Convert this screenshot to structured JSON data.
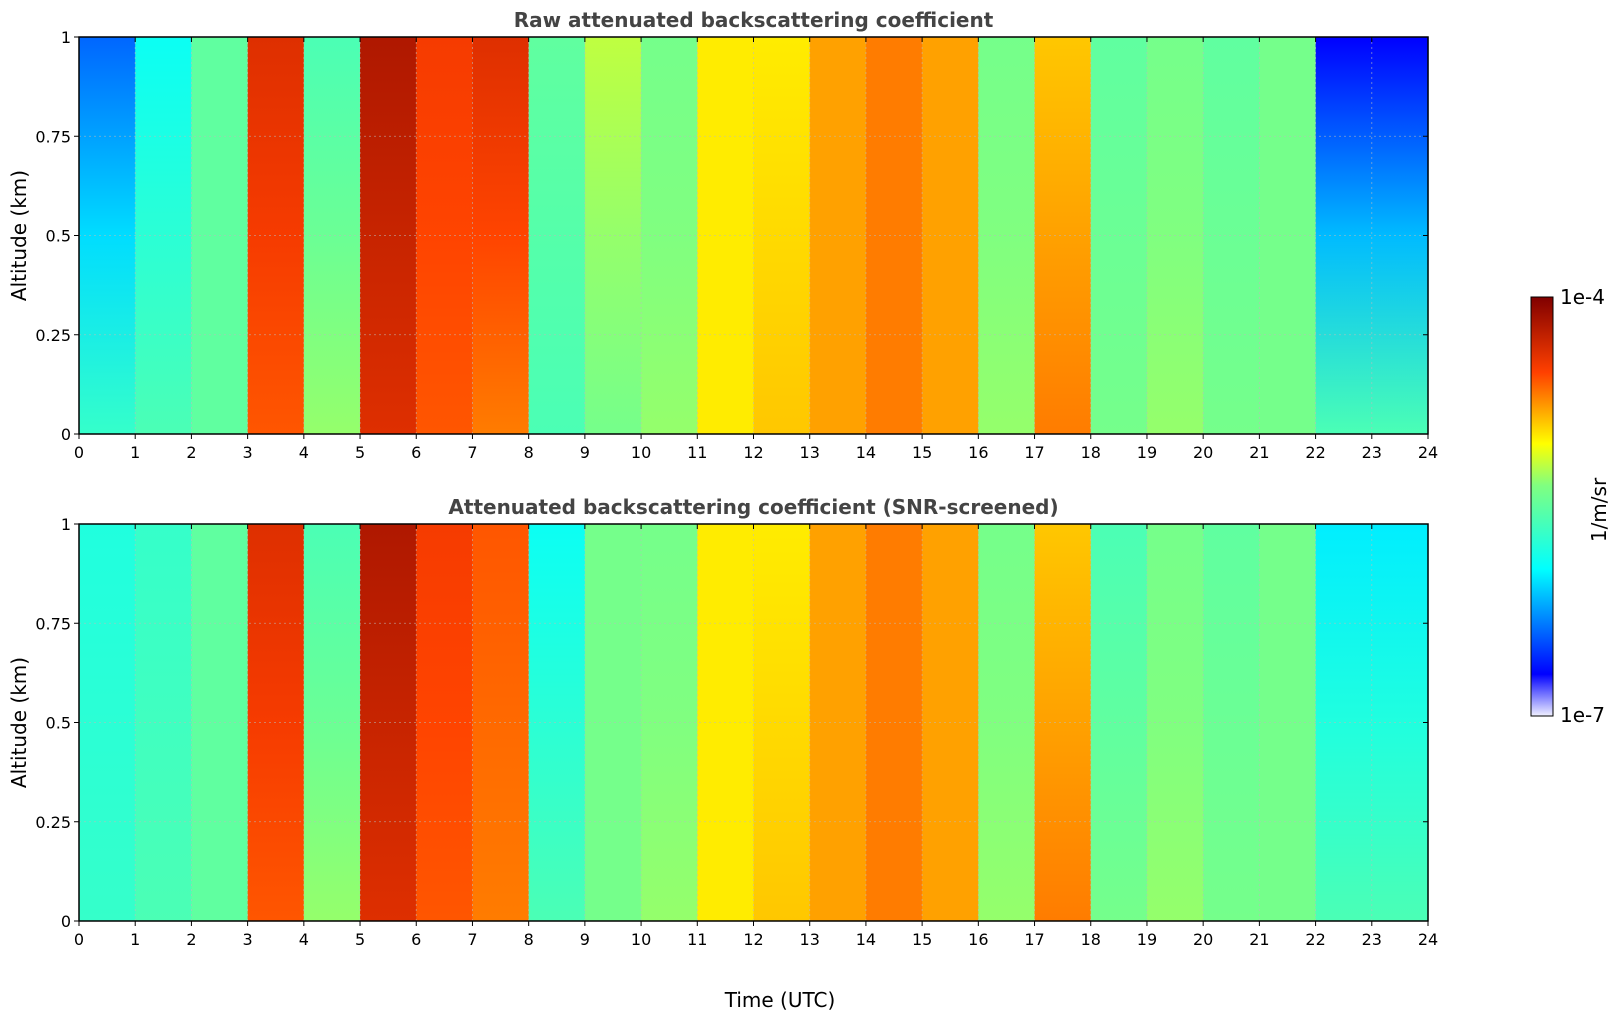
{
  "chart_data": [
    {
      "type": "heatmap",
      "title": "Raw attenuated backscattering coefficient",
      "xlabel": "",
      "ylabel": "Altitude (km)",
      "xlim": [
        0,
        24
      ],
      "ylim": [
        0,
        1
      ],
      "x_ticks": [
        "0",
        "1",
        "2",
        "3",
        "4",
        "5",
        "6",
        "7",
        "8",
        "9",
        "10",
        "11",
        "12",
        "13",
        "14",
        "15",
        "16",
        "17",
        "18",
        "19",
        "20",
        "21",
        "22",
        "23",
        "24"
      ],
      "y_ticks": [
        "0",
        "0.25",
        "0.5",
        "0.75",
        "1"
      ],
      "grid": true,
      "colormap": "jet",
      "color_scale": "log",
      "color_range": [
        "1e-7",
        "1e-4"
      ],
      "screened": false,
      "hourly_profile_top": [
        5.6,
        6.1,
        6.5,
        7.6,
        6.4,
        7.8,
        7.5,
        7.6,
        6.5,
        6.8,
        6.6,
        7.0,
        7.0,
        7.2,
        7.3,
        7.2,
        6.6,
        7.1,
        6.5,
        6.6,
        6.5,
        6.6,
        5.3,
        5.3
      ],
      "hourly_profile_bottom": [
        6.3,
        6.4,
        6.5,
        7.4,
        6.7,
        7.6,
        7.4,
        7.3,
        6.4,
        6.6,
        6.7,
        7.0,
        7.1,
        7.2,
        7.3,
        7.2,
        6.7,
        7.3,
        6.6,
        6.7,
        6.6,
        6.6,
        6.4,
        6.4
      ]
    },
    {
      "type": "heatmap",
      "title": "Attenuated backscattering coefficient (SNR-screened)",
      "xlabel": "Time (UTC)",
      "ylabel": "Altitude (km)",
      "xlim": [
        0,
        24
      ],
      "ylim": [
        0,
        1
      ],
      "x_ticks": [
        "0",
        "1",
        "2",
        "3",
        "4",
        "5",
        "6",
        "7",
        "8",
        "9",
        "10",
        "11",
        "12",
        "13",
        "14",
        "15",
        "16",
        "17",
        "18",
        "19",
        "20",
        "21",
        "22",
        "23",
        "24"
      ],
      "y_ticks": [
        "0",
        "0.25",
        "0.5",
        "0.75",
        "1"
      ],
      "grid": true,
      "colormap": "jet",
      "color_scale": "log",
      "color_range": [
        "1e-7",
        "1e-4"
      ],
      "screened": true,
      "hourly_profile_top": [
        6.2,
        6.3,
        6.5,
        7.6,
        6.4,
        7.8,
        7.5,
        7.4,
        6.1,
        6.6,
        6.6,
        7.0,
        7.0,
        7.2,
        7.3,
        7.2,
        6.6,
        7.1,
        6.4,
        6.6,
        6.5,
        6.6,
        6.0,
        6.0
      ],
      "hourly_profile_bottom": [
        6.3,
        6.4,
        6.5,
        7.4,
        6.7,
        7.6,
        7.4,
        7.3,
        6.4,
        6.6,
        6.7,
        7.0,
        7.1,
        7.2,
        7.3,
        7.2,
        6.7,
        7.3,
        6.6,
        6.7,
        6.6,
        6.6,
        6.4,
        6.4
      ]
    }
  ],
  "colorbar": {
    "label": "1/m/sr",
    "max_label": "1e-4",
    "min_label": "1e-7"
  }
}
